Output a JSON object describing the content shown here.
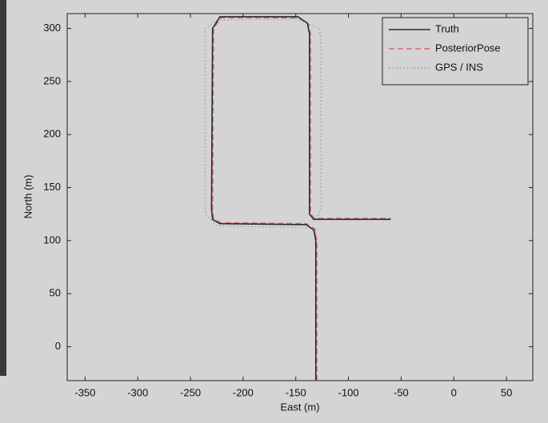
{
  "chart_data": {
    "type": "line",
    "xlabel": "East (m)",
    "ylabel": "North (m)",
    "xlim": [
      -367,
      75
    ],
    "ylim": [
      -32,
      314
    ],
    "xticks": [
      -350,
      -300,
      -250,
      -200,
      -150,
      -100,
      -50,
      0,
      50
    ],
    "yticks": [
      0,
      50,
      100,
      150,
      200,
      250,
      300
    ],
    "grid": false,
    "legend": "upper right",
    "series": [
      {
        "name": "Truth",
        "color": "#2b2b2b",
        "style": "solid",
        "x": [
          -131,
          -131,
          -133,
          -140,
          -222,
          -229,
          -230,
          -229,
          -222,
          -148,
          -139,
          -137,
          -137,
          -133,
          -125,
          -60
        ],
        "values": [
          -32,
          100,
          110,
          115,
          116,
          120,
          130,
          300,
          311,
          311,
          305,
          295,
          125,
          120,
          120,
          120
        ]
      },
      {
        "name": "PosteriorPose",
        "color": "#d9666e",
        "style": "dashed",
        "x": [
          -130,
          -130,
          -132,
          -140,
          -222,
          -228,
          -229,
          -228,
          -221,
          -147,
          -138,
          -136,
          -136,
          -132,
          -124,
          -60
        ],
        "values": [
          -32,
          100,
          111,
          116,
          117,
          121,
          130,
          300,
          310,
          310,
          304,
          295,
          125,
          121,
          121,
          121
        ]
      },
      {
        "name": "GPS / INS",
        "color": "#8f9cc4",
        "style": "dotted",
        "x": [
          -131,
          -131,
          -225,
          -236,
          -236,
          -224,
          -150,
          -128,
          -126,
          -126,
          -131
        ],
        "values": [
          -32,
          112,
          114,
          125,
          300,
          308,
          309,
          300,
          290,
          130,
          118
        ]
      }
    ]
  }
}
